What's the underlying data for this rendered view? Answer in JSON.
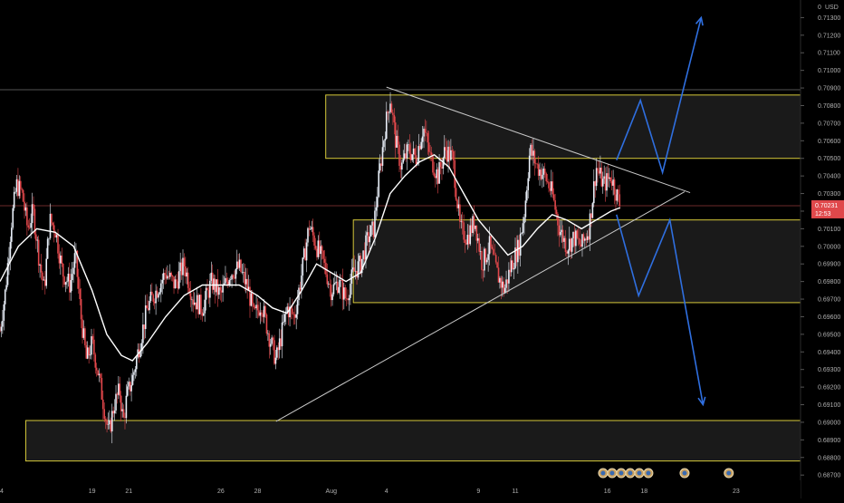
{
  "chart_data": {
    "type": "candlestick",
    "currency": "USD",
    "currency_prefix": "0",
    "y_ticks": [
      "0.71300",
      "0.71200",
      "0.71100",
      "0.71000",
      "0.70900",
      "0.70800",
      "0.70700",
      "0.70600",
      "0.70500",
      "0.70400",
      "0.70300",
      "0.70200",
      "0.70100",
      "0.70000",
      "0.69900",
      "0.69800",
      "0.69700",
      "0.69600",
      "0.69500",
      "0.69400",
      "0.69300",
      "0.69200",
      "0.69100",
      "0.69000",
      "0.68900",
      "0.68800",
      "0.68700"
    ],
    "ylim": [
      0.6867,
      0.714
    ],
    "x_ticks": [
      {
        "label": "14",
        "day": 14
      },
      {
        "label": "19",
        "day": 19
      },
      {
        "label": "21",
        "day": 21
      },
      {
        "label": "26",
        "day": 26
      },
      {
        "label": "28",
        "day": 28
      },
      {
        "label": "Aug",
        "day": 32
      },
      {
        "label": "4",
        "day": 35
      },
      {
        "label": "9",
        "day": 40
      },
      {
        "label": "11",
        "day": 42
      },
      {
        "label": "16",
        "day": 47
      },
      {
        "label": "18",
        "day": 49
      },
      {
        "label": "23",
        "day": 54
      }
    ],
    "xlim": [
      14,
      57.5
    ],
    "current_price": {
      "value": "0.70231",
      "countdown": "12:53",
      "price": 0.70231
    },
    "price_path": [
      [
        14.0,
        0.6952
      ],
      [
        14.3,
        0.6975
      ],
      [
        14.6,
        0.7012
      ],
      [
        14.9,
        0.7035
      ],
      [
        15.2,
        0.703
      ],
      [
        15.5,
        0.701
      ],
      [
        15.8,
        0.702
      ],
      [
        16.1,
        0.6995
      ],
      [
        16.4,
        0.6975
      ],
      [
        16.7,
        0.7015
      ],
      [
        17.0,
        0.701
      ],
      [
        17.4,
        0.6985
      ],
      [
        17.8,
        0.6978
      ],
      [
        18.1,
        0.6995
      ],
      [
        18.4,
        0.696
      ],
      [
        18.7,
        0.6935
      ],
      [
        19.0,
        0.6945
      ],
      [
        19.3,
        0.693
      ],
      [
        19.6,
        0.6912
      ],
      [
        19.9,
        0.6893
      ],
      [
        20.2,
        0.691
      ],
      [
        20.5,
        0.6918
      ],
      [
        20.7,
        0.69
      ],
      [
        20.9,
        0.6915
      ],
      [
        21.2,
        0.6925
      ],
      [
        21.6,
        0.6945
      ],
      [
        22.0,
        0.6965
      ],
      [
        22.5,
        0.6975
      ],
      [
        23.0,
        0.6985
      ],
      [
        23.5,
        0.6978
      ],
      [
        24.0,
        0.699
      ],
      [
        24.5,
        0.697
      ],
      [
        25.0,
        0.6965
      ],
      [
        25.5,
        0.698
      ],
      [
        26.0,
        0.6972
      ],
      [
        26.5,
        0.6985
      ],
      [
        27.0,
        0.6988
      ],
      [
        27.5,
        0.6975
      ],
      [
        27.8,
        0.696
      ],
      [
        28.2,
        0.6968
      ],
      [
        28.6,
        0.695
      ],
      [
        29.0,
        0.6935
      ],
      [
        29.3,
        0.695
      ],
      [
        29.6,
        0.6965
      ],
      [
        30.0,
        0.696
      ],
      [
        30.4,
        0.6985
      ],
      [
        30.8,
        0.7012
      ],
      [
        31.2,
        0.7
      ],
      [
        31.6,
        0.699
      ],
      [
        32.0,
        0.6975
      ],
      [
        32.4,
        0.698
      ],
      [
        32.8,
        0.697
      ],
      [
        33.2,
        0.6985
      ],
      [
        33.6,
        0.699
      ],
      [
        34.0,
        0.7005
      ],
      [
        34.3,
        0.701
      ],
      [
        34.6,
        0.704
      ],
      [
        34.9,
        0.7065
      ],
      [
        35.2,
        0.7085
      ],
      [
        35.5,
        0.706
      ],
      [
        35.8,
        0.7045
      ],
      [
        36.2,
        0.7055
      ],
      [
        36.6,
        0.705
      ],
      [
        37.0,
        0.7068
      ],
      [
        37.4,
        0.705
      ],
      [
        37.8,
        0.704
      ],
      [
        38.2,
        0.7055
      ],
      [
        38.6,
        0.705
      ],
      [
        39.0,
        0.701
      ],
      [
        39.4,
        0.7005
      ],
      [
        39.8,
        0.7015
      ],
      [
        40.2,
        0.699
      ],
      [
        40.6,
        0.7
      ],
      [
        41.0,
        0.6985
      ],
      [
        41.4,
        0.6975
      ],
      [
        41.8,
        0.699
      ],
      [
        42.2,
        0.7
      ],
      [
        42.5,
        0.702
      ],
      [
        42.8,
        0.7055
      ],
      [
        43.2,
        0.7045
      ],
      [
        43.6,
        0.704
      ],
      [
        44.0,
        0.703
      ],
      [
        44.4,
        0.701
      ],
      [
        44.8,
        0.7
      ],
      [
        45.2,
        0.7005
      ],
      [
        45.6,
        0.7
      ],
      [
        46.0,
        0.701
      ],
      [
        46.4,
        0.7045
      ],
      [
        46.8,
        0.7035
      ],
      [
        47.2,
        0.704
      ],
      [
        47.5,
        0.703
      ],
      [
        47.7,
        0.7023
      ]
    ],
    "moving_average": [
      [
        14.0,
        0.698
      ],
      [
        15.0,
        0.7
      ],
      [
        16.0,
        0.701
      ],
      [
        17.0,
        0.7008
      ],
      [
        18.0,
        0.7
      ],
      [
        19.0,
        0.6975
      ],
      [
        19.8,
        0.695
      ],
      [
        20.6,
        0.6938
      ],
      [
        21.2,
        0.6935
      ],
      [
        22.0,
        0.6945
      ],
      [
        23.0,
        0.696
      ],
      [
        24.0,
        0.6972
      ],
      [
        25.0,
        0.6978
      ],
      [
        26.0,
        0.6978
      ],
      [
        27.0,
        0.6978
      ],
      [
        28.0,
        0.6972
      ],
      [
        28.8,
        0.6965
      ],
      [
        29.6,
        0.6962
      ],
      [
        30.4,
        0.6975
      ],
      [
        31.2,
        0.699
      ],
      [
        32.0,
        0.6985
      ],
      [
        32.8,
        0.698
      ],
      [
        33.6,
        0.6985
      ],
      [
        34.4,
        0.7005
      ],
      [
        35.2,
        0.703
      ],
      [
        36.0,
        0.704
      ],
      [
        36.8,
        0.7048
      ],
      [
        37.6,
        0.7052
      ],
      [
        38.4,
        0.7045
      ],
      [
        39.2,
        0.703
      ],
      [
        40.0,
        0.7015
      ],
      [
        40.8,
        0.7005
      ],
      [
        41.6,
        0.6995
      ],
      [
        42.4,
        0.7
      ],
      [
        43.2,
        0.701
      ],
      [
        44.0,
        0.7018
      ],
      [
        44.8,
        0.7015
      ],
      [
        45.6,
        0.701
      ],
      [
        46.4,
        0.7015
      ],
      [
        47.2,
        0.702
      ],
      [
        47.7,
        0.7022
      ]
    ],
    "zones": [
      {
        "y_top": 0.7086,
        "y_bottom": 0.705,
        "x_start": 31.7,
        "x_end": 57.5
      },
      {
        "y_top": 0.7015,
        "y_bottom": 0.6968,
        "x_start": 33.2,
        "x_end": 57.5
      },
      {
        "y_top": 0.6901,
        "y_bottom": 0.6878,
        "x_start": 15.4,
        "x_end": 57.5
      }
    ],
    "h_lines": [
      {
        "y": 0.7089,
        "x_start": 14,
        "x_end": 57.5,
        "color": "#555555"
      },
      {
        "y": 0.70231,
        "x_start": 14,
        "x_end": 57.5,
        "color": "#6b2a2a"
      }
    ],
    "trendlines": [
      {
        "points": [
          [
            35.0,
            0.70905
          ],
          [
            51.5,
            0.70305
          ]
        ],
        "color": "#c8c8c8"
      },
      {
        "points": [
          [
            29.0,
            0.69005
          ],
          [
            51.2,
            0.7031
          ]
        ],
        "color": "#c8c8c8"
      }
    ],
    "projections": [
      {
        "points": [
          [
            47.5,
            0.7049
          ],
          [
            48.8,
            0.7083
          ],
          [
            50.0,
            0.7042
          ],
          [
            52.1,
            0.713
          ]
        ],
        "color": "#2f6fe0"
      },
      {
        "points": [
          [
            47.5,
            0.7018
          ],
          [
            48.7,
            0.6972
          ],
          [
            50.4,
            0.7015
          ],
          [
            52.2,
            0.691
          ]
        ],
        "color": "#2f6fe0"
      }
    ],
    "event_icons": [
      {
        "day": 48.0,
        "count": 6
      },
      {
        "day": 51.2,
        "count": 1
      },
      {
        "day": 53.6,
        "count": 1
      }
    ]
  }
}
